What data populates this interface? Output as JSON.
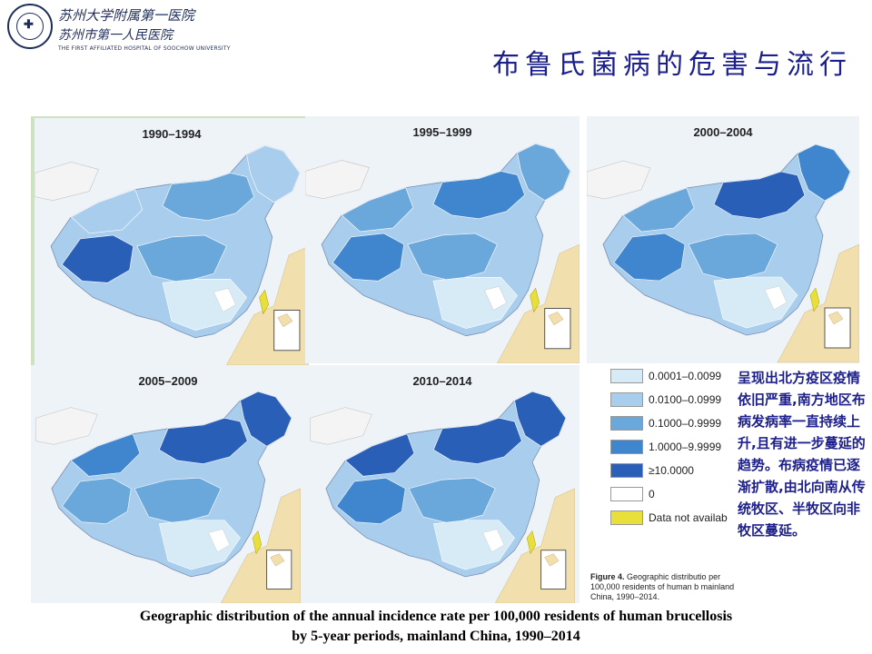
{
  "logo": {
    "line1": "苏州大学附属第一医院",
    "line2": "苏州市第一人民医院",
    "line3": "THE FIRST AFFILIATED HOSPITAL OF SOOCHOW UNIVERSITY"
  },
  "title": "布鲁氏菌病的危害与流行",
  "panels": [
    {
      "label": "1990–1994",
      "tibet": "#2a5fb8",
      "north": "#a9cdec",
      "northeast": "#a9cdec",
      "inner": "#6aa8dc"
    },
    {
      "label": "1995–1999",
      "tibet": "#3f86cf",
      "north": "#6aa8dc",
      "northeast": "#6aa8dc",
      "inner": "#3f86cf"
    },
    {
      "label": "2000–2004",
      "tibet": "#3f86cf",
      "north": "#6aa8dc",
      "northeast": "#3f86cf",
      "inner": "#2a5fb8"
    },
    {
      "label": "2005–2009",
      "tibet": "#6aa8dc",
      "north": "#3f86cf",
      "northeast": "#2a5fb8",
      "inner": "#2a5fb8"
    },
    {
      "label": "2010–2014",
      "tibet": "#3f86cf",
      "north": "#2a5fb8",
      "northeast": "#2a5fb8",
      "inner": "#2a5fb8"
    }
  ],
  "legend": [
    {
      "label": "0.0001–0.0099",
      "color": "#d6ebf6"
    },
    {
      "label": "0.0100–0.0999",
      "color": "#a9cdec"
    },
    {
      "label": "0.1000–0.9999",
      "color": "#6aa8dc"
    },
    {
      "label": "1.0000–9.9999",
      "color": "#3f86cf"
    },
    {
      "label": "≥10.0000",
      "color": "#2a5fb8"
    },
    {
      "label": "0",
      "color": "#ffffff"
    },
    {
      "label": "Data not availab",
      "color": "#e9df3a"
    }
  ],
  "figure_caption": {
    "bold": "Figure 4.",
    "text": " Geographic distributio per 100,000 residents of human b mainland China, 1990–2014."
  },
  "note": "呈现出北方疫区疫情依旧严重,南方地区布病发病率一直持续上升,且有进一步蔓延的趋势。布病疫情已逐渐扩散,由北向南从传统牧区、半牧区向非牧区蔓延。",
  "caption": {
    "line1": "Geographic distribution of the annual incidence rate per 100,000 residents of human brucellosis",
    "line2": "by 5-year periods, mainland China, 1990–2014"
  }
}
